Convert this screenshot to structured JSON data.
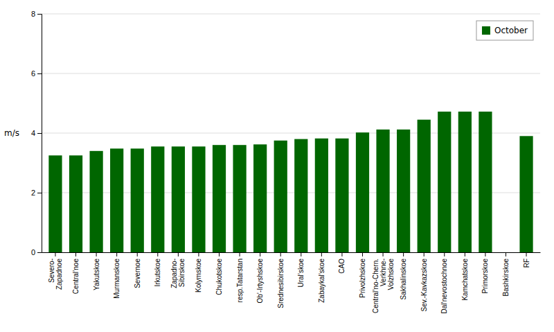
{
  "chart_data": {
    "type": "bar",
    "categories": [
      "Severo-\nZapadnoe",
      "Central’noe",
      "Yakutskoe",
      "Murmanskoe",
      "Severnoe",
      "Irkutskoe",
      "Zapadno-\nSibirskoe",
      "Kolymskoe",
      "Chukotskoe",
      "resp.Tatarstan",
      "Ob’-Irtyshskoe",
      "Srednesibirskoe",
      "Ural’skoe",
      "Zabaykal’skoe",
      "CAO",
      "Privolzhskoe",
      "Central’no-Chern.\nVerkhne-\nVolzhskoe",
      "Sakhalinskoe",
      "Sev.-Kavkazskoe",
      "Dal’nevostochnoe",
      "Kamchatskoe",
      "Primorskoe",
      "Bashkirskoe",
      "RF"
    ],
    "series": [
      {
        "name": "October",
        "color": "#006600",
        "values": [
          3.25,
          3.25,
          3.4,
          3.48,
          3.48,
          3.55,
          3.55,
          3.55,
          3.6,
          3.6,
          3.62,
          3.75,
          3.8,
          3.82,
          3.82,
          4.02,
          4.12,
          4.12,
          4.45,
          4.72,
          4.72,
          4.72,
          0.0,
          3.9
        ]
      }
    ],
    "ylabel": "m/s",
    "ylim": [
      0,
      8
    ],
    "yticks": [
      0,
      2,
      4,
      6,
      8
    ],
    "grid": true,
    "legend": "upper right"
  }
}
